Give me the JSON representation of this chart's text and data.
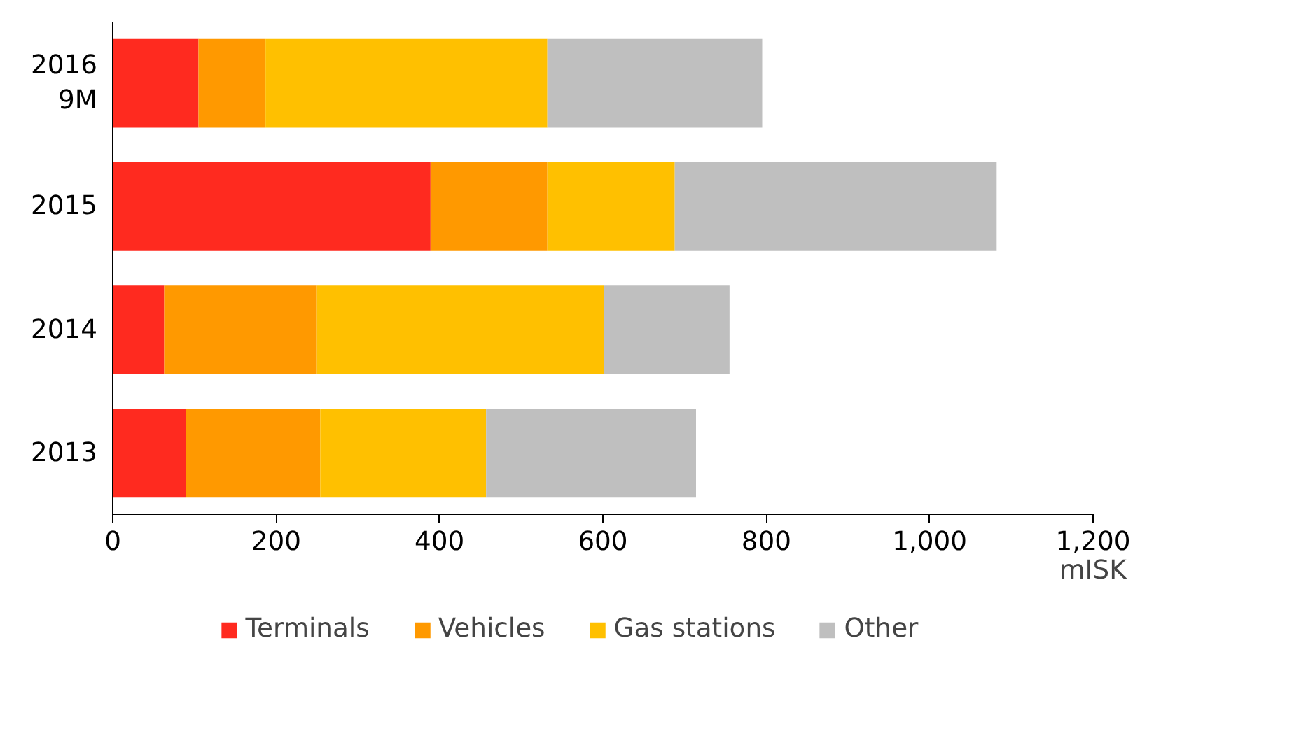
{
  "chart_data": {
    "type": "bar",
    "orientation": "horizontal",
    "stacked": true,
    "categories": [
      "2016\n9M",
      "2015",
      "2014",
      "2013"
    ],
    "series": [
      {
        "name": "Terminals",
        "color": "#ff2a1f",
        "values": [
          105,
          389,
          63,
          90
        ]
      },
      {
        "name": "Vehicles",
        "color": "#ff9900",
        "values": [
          82,
          143,
          187,
          164
        ]
      },
      {
        "name": "Gas stations",
        "color": "#ffc000",
        "values": [
          345,
          156,
          351,
          203
        ]
      },
      {
        "name": "Other",
        "color": "#bfbfbf",
        "values": [
          263,
          394,
          154,
          257
        ]
      }
    ],
    "xlabel": "mISK",
    "xlim": [
      0,
      1200
    ],
    "xticks": [
      0,
      200,
      400,
      600,
      800,
      {
        "value": 1000,
        "label": "1,000"
      },
      {
        "value": 1200,
        "label": "1,200"
      }
    ],
    "grid": false,
    "legend": "bottom"
  }
}
